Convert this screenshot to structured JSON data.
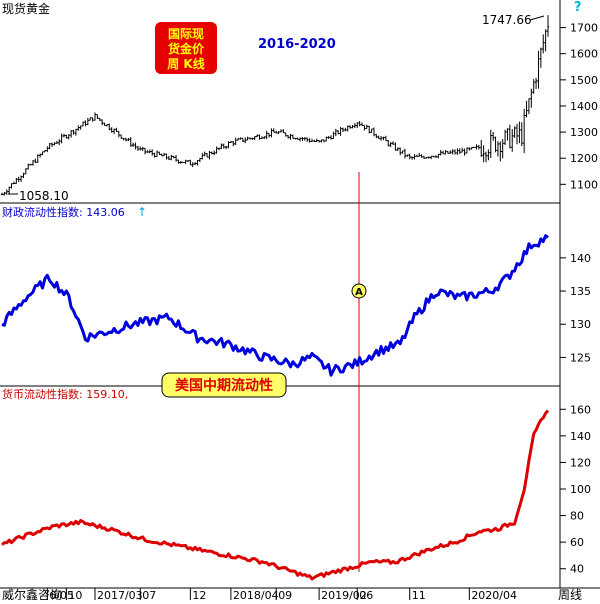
{
  "header": {
    "title": "现货黄金",
    "help_glyph": "?",
    "period_label": "2016-2020"
  },
  "badge": {
    "lines": [
      "国际现",
      "货金价",
      "周  K线"
    ],
    "color": "#e60000"
  },
  "annotations": {
    "high_label": "1747.66",
    "low_label": "1058.10",
    "marker_glyph": "A",
    "callout": "美国中期流动性"
  },
  "footer": {
    "left_label": "威尔鑫咨询",
    "right_label": "周线"
  },
  "colors": {
    "gold_price": "#000000",
    "fiscal_liquidity": "#0000dd",
    "monetary_liquidity": "#dd0000",
    "marker_line": "#dd0000",
    "callout_bg": "#ffff66",
    "callout_text": "#dd0000"
  },
  "chart_data": [
    {
      "type": "bar",
      "subtype": "ohlc-weekly",
      "title": "现货黄金",
      "x_ticks": [
        "6/05",
        "10",
        "2017/03",
        "07",
        "12",
        "2018/04",
        "09",
        "2019/02",
        "06",
        "11",
        "2020/04"
      ],
      "x_points": [
        0,
        19,
        39,
        58,
        79,
        96,
        115,
        133,
        149,
        171,
        196,
        218,
        229
      ],
      "close_points": [
        1062,
        1240,
        1360,
        1230,
        1180,
        1260,
        1300,
        1260,
        1340,
        1200,
        1230,
        1290,
        1720
      ],
      "y_ticks": [
        1100,
        1200,
        1300,
        1400,
        1500,
        1600,
        1700
      ],
      "ylim": [
        1040,
        1775
      ],
      "high": 1747.66,
      "low": 1058.1
    },
    {
      "type": "line",
      "title": "财政流动性指数",
      "latest_label": "财政流动性指数: 143.06",
      "arrow": "↑",
      "x_points": [
        0,
        10,
        20,
        28,
        35,
        45,
        55,
        70,
        82,
        95,
        110,
        122,
        130,
        138,
        148,
        158,
        167,
        173,
        182,
        192,
        205,
        212,
        222,
        229
      ],
      "values": [
        130,
        134,
        137,
        134,
        128,
        129,
        130,
        131,
        128,
        127,
        125,
        124,
        125,
        123,
        124,
        126,
        127,
        131,
        135,
        134,
        135,
        137,
        142,
        143.06
      ],
      "y_ticks": [
        125,
        130,
        135,
        140
      ],
      "ylim": [
        121,
        146
      ]
    },
    {
      "type": "line",
      "title": "货币流动性指数",
      "latest_label": "货币流动性指数: 159.10,",
      "x_points": [
        0,
        10,
        22,
        33,
        45,
        60,
        80,
        95,
        110,
        118,
        130,
        140,
        155,
        165,
        180,
        190,
        200,
        208,
        215,
        219,
        223,
        227,
        229
      ],
      "values": [
        58,
        65,
        72,
        75,
        70,
        62,
        55,
        50,
        45,
        40,
        33,
        38,
        45,
        45,
        55,
        60,
        68,
        70,
        75,
        100,
        140,
        155,
        159.1
      ],
      "y_ticks": [
        40,
        60,
        80,
        100,
        120,
        140,
        160
      ],
      "ylim": [
        27,
        170
      ]
    }
  ]
}
